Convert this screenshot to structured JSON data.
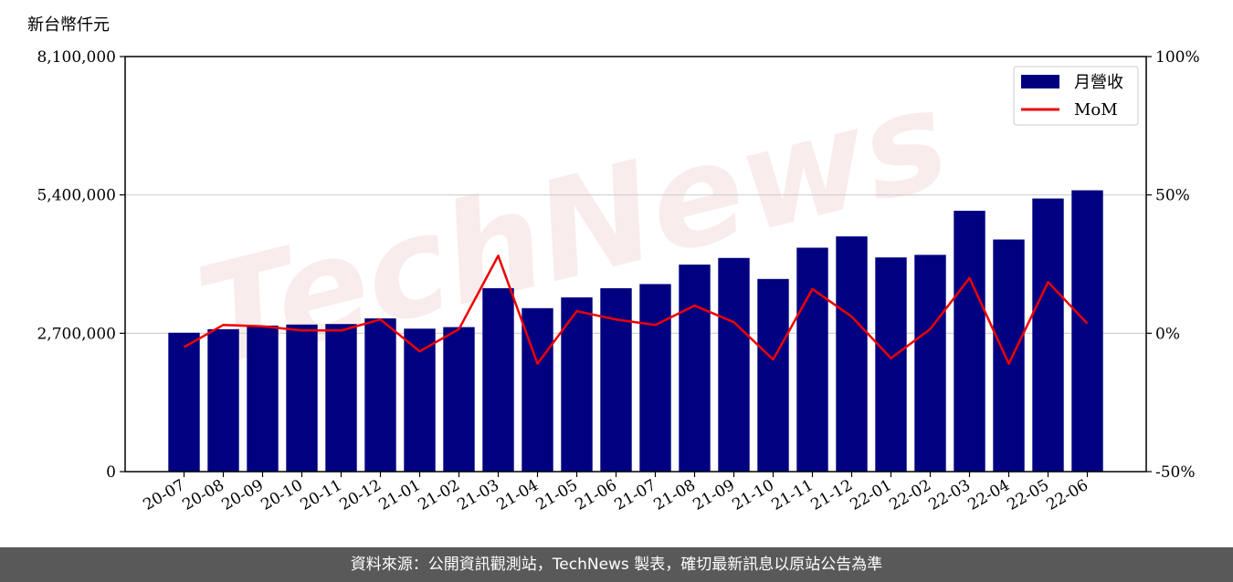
{
  "chart_data": {
    "type": "bar+line",
    "watermark": "TechNews",
    "y_unit_label": "新台幣仟元",
    "categories": [
      "20-07",
      "20-08",
      "20-09",
      "20-10",
      "20-11",
      "20-12",
      "21-01",
      "21-02",
      "21-03",
      "21-04",
      "21-05",
      "21-06",
      "21-07",
      "21-08",
      "21-09",
      "21-10",
      "21-11",
      "21-12",
      "22-01",
      "22-02",
      "22-03",
      "22-04",
      "22-05",
      "22-06"
    ],
    "series": [
      {
        "name": "月營收",
        "type": "bar",
        "axis": "left",
        "color": "#000080",
        "values": [
          2710000,
          2780000,
          2850000,
          2870000,
          2880000,
          2990000,
          2790000,
          2820000,
          3580000,
          3190000,
          3400000,
          3580000,
          3660000,
          4040000,
          4170000,
          3760000,
          4370000,
          4590000,
          4180000,
          4230000,
          5090000,
          4530000,
          5330000,
          5490000
        ]
      },
      {
        "name": "MoM",
        "type": "line",
        "axis": "right",
        "color": "#ee0000",
        "values": [
          -5.0,
          3.0,
          2.5,
          1.0,
          1.0,
          5.0,
          -6.5,
          1.5,
          28.0,
          -11.0,
          8.0,
          5.0,
          3.0,
          10.0,
          4.0,
          -9.5,
          16.0,
          6.0,
          -9.0,
          1.5,
          20.0,
          -11.0,
          18.5,
          3.5
        ]
      }
    ],
    "y_left": {
      "min": 0,
      "max": 8100000,
      "ticks": [
        0,
        2700000,
        5400000,
        8100000
      ],
      "tick_labels": [
        "0",
        "2,700,000",
        "5,400,000",
        "8,100,000"
      ]
    },
    "y_right": {
      "min": -50,
      "max": 100,
      "ticks": [
        -50,
        0,
        50,
        100
      ],
      "tick_labels": [
        "-50%",
        "0%",
        "50%",
        "100%"
      ]
    },
    "grid": "horizontal",
    "legend_position": "top-right"
  },
  "footer": {
    "text": "資料來源：公開資訊觀測站，TechNews 製表，確切最新訊息以原站公告為準"
  }
}
